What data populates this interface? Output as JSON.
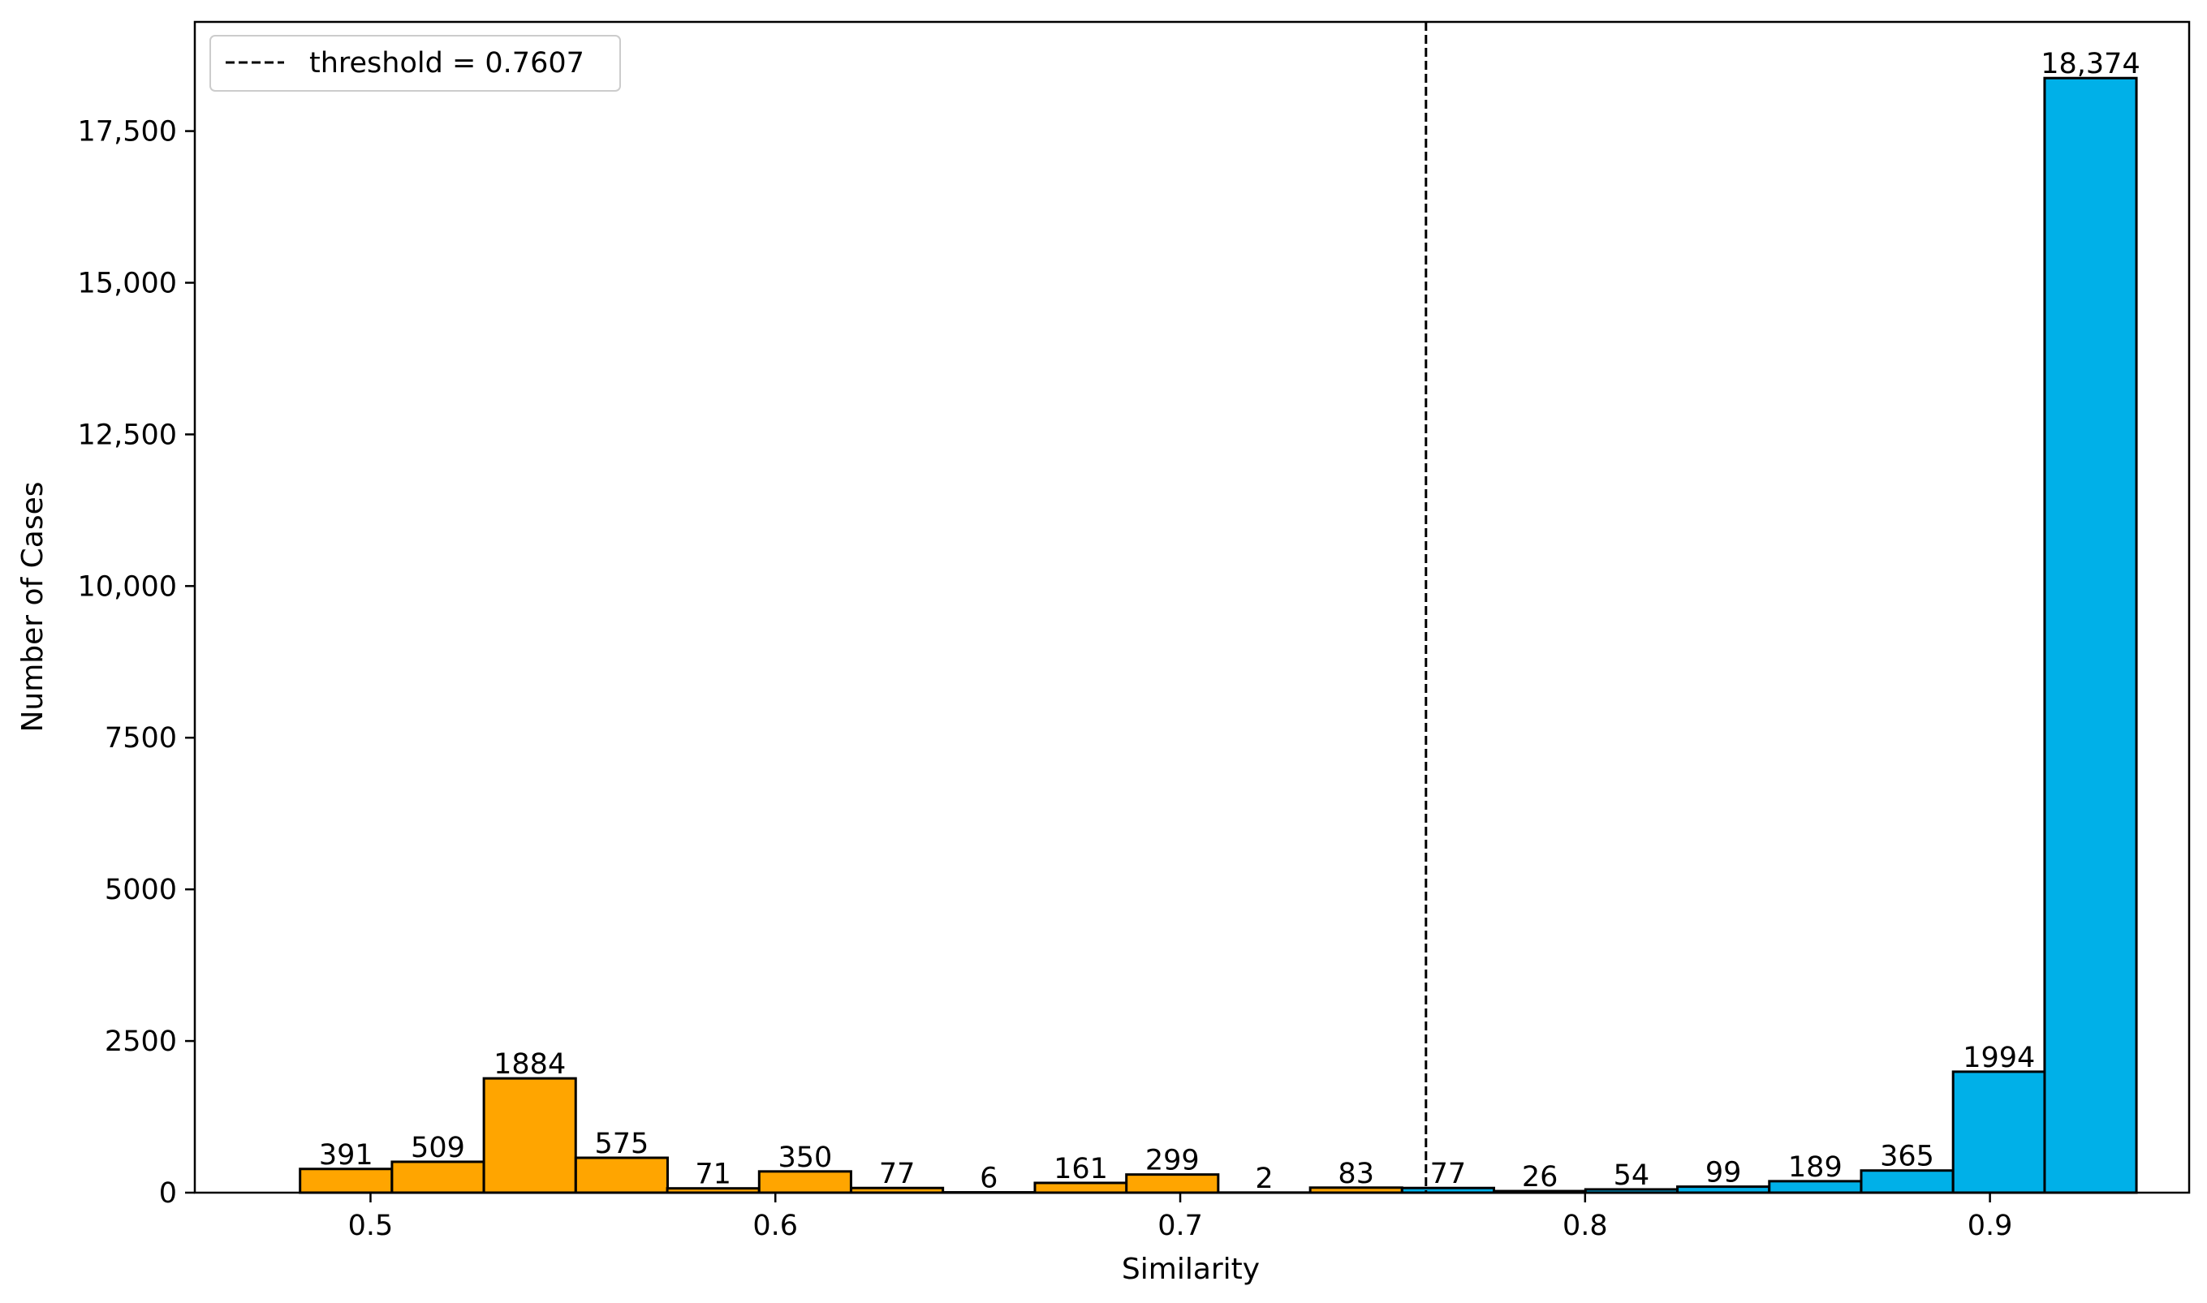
{
  "chart_data": {
    "type": "bar",
    "xlabel": "Similarity",
    "ylabel": "Number of Cases",
    "xlim": [
      0.4566,
      0.9492
    ],
    "ylim": [
      0,
      19300
    ],
    "x_ticks": [
      0.5,
      0.6,
      0.7,
      0.8,
      0.9
    ],
    "x_tick_labels": [
      "0.5",
      "0.6",
      "0.7",
      "0.8",
      "0.9"
    ],
    "y_ticks": [
      0,
      2500,
      5000,
      7500,
      10000,
      12500,
      15000,
      17500
    ],
    "y_tick_labels": [
      "0",
      "2500",
      "5000",
      "7500",
      "10,000",
      "12,500",
      "15,000",
      "17,500"
    ],
    "bin_width": 0.02268,
    "threshold": {
      "value": 0.7607,
      "label": "threshold = 0.7607",
      "style": "dashed",
      "color": "#000000"
    },
    "legend": {
      "placement": "top-left",
      "entries": [
        "threshold = 0.7607"
      ]
    },
    "grid": false,
    "series": [
      {
        "color": "#FFA500",
        "bins": [
          {
            "x0": 0.4826,
            "value": 391,
            "label": "391"
          },
          {
            "x0": 0.5053,
            "value": 509,
            "label": "509"
          },
          {
            "x0": 0.528,
            "value": 1884,
            "label": "1884"
          },
          {
            "x0": 0.5507,
            "value": 575,
            "label": "575"
          },
          {
            "x0": 0.5733,
            "value": 71,
            "label": "71"
          },
          {
            "x0": 0.596,
            "value": 350,
            "label": "350"
          },
          {
            "x0": 0.6187,
            "value": 77,
            "label": "77"
          },
          {
            "x0": 0.6414,
            "value": 6,
            "label": "6"
          },
          {
            "x0": 0.6641,
            "value": 161,
            "label": "161"
          },
          {
            "x0": 0.6867,
            "value": 299,
            "label": "299"
          },
          {
            "x0": 0.7094,
            "value": 2,
            "label": "2"
          },
          {
            "x0": 0.7321,
            "value": 83,
            "label": "83"
          }
        ]
      },
      {
        "color": "#00B0E8",
        "bins": [
          {
            "x0": 0.7548,
            "value": 77,
            "label": "77"
          },
          {
            "x0": 0.7775,
            "value": 26,
            "label": "26"
          },
          {
            "x0": 0.8001,
            "value": 54,
            "label": "54"
          },
          {
            "x0": 0.8228,
            "value": 99,
            "label": "99"
          },
          {
            "x0": 0.8455,
            "value": 189,
            "label": "189"
          },
          {
            "x0": 0.8682,
            "value": 365,
            "label": "365"
          },
          {
            "x0": 0.8909,
            "value": 1994,
            "label": "1994"
          },
          {
            "x0": 0.9135,
            "value": 18374,
            "label": "18,374"
          }
        ]
      }
    ]
  }
}
